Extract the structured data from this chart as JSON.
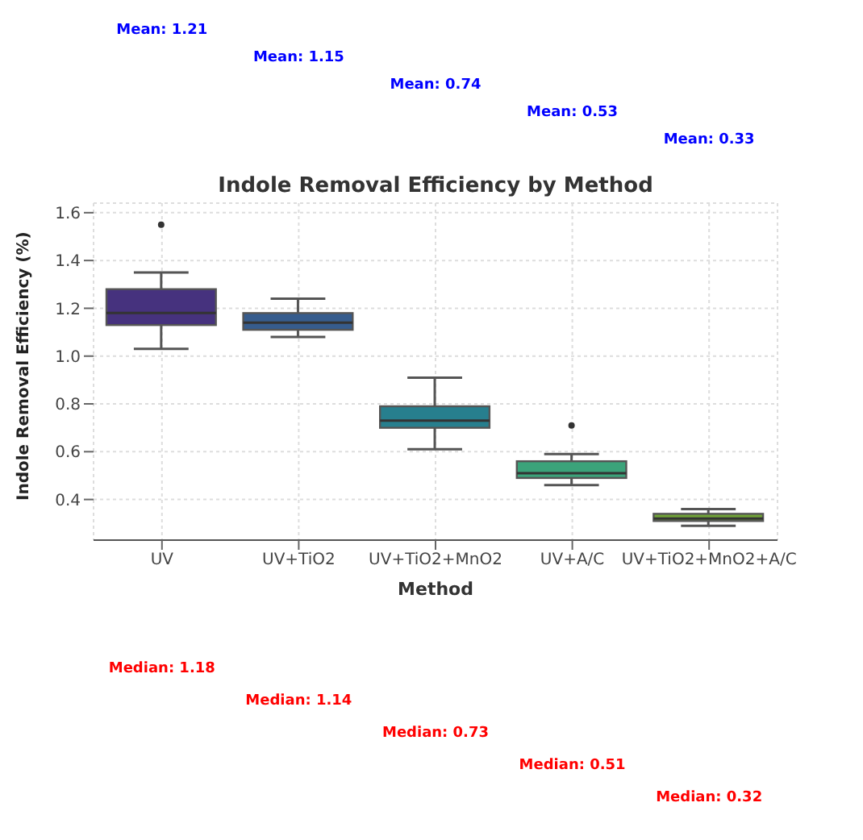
{
  "chart_data": {
    "type": "box",
    "title": "Indole Removal Efficiency by Method",
    "xlabel": "Method",
    "ylabel": "Indole Removal Efficiency (%)",
    "categories": [
      "UV",
      "UV+TiO2",
      "UV+TiO2+MnO2",
      "UV+A/C",
      "UV+TiO2+MnO2+A/C"
    ],
    "colors": [
      "#46327e",
      "#365c8d",
      "#277f8e",
      "#3ba37a",
      "#70a237"
    ],
    "boxes": [
      {
        "low": 1.03,
        "q1": 1.13,
        "median": 1.18,
        "q3": 1.28,
        "high": 1.35,
        "outliers": [
          1.55
        ]
      },
      {
        "low": 1.08,
        "q1": 1.11,
        "median": 1.14,
        "q3": 1.18,
        "high": 1.24
      },
      {
        "low": 0.61,
        "q1": 0.7,
        "median": 0.73,
        "q3": 0.79,
        "high": 0.91
      },
      {
        "low": 0.46,
        "q1": 0.49,
        "median": 0.51,
        "q3": 0.56,
        "high": 0.59,
        "outliers": [
          0.71
        ]
      },
      {
        "low": 0.29,
        "q1": 0.31,
        "median": 0.32,
        "q3": 0.34,
        "high": 0.36
      }
    ],
    "ylim": [
      0.23,
      1.64
    ],
    "yticks": [
      {
        "value": 0.4,
        "label": "0.4"
      },
      {
        "value": 0.6,
        "label": "0.6"
      },
      {
        "value": 0.8,
        "label": "0.8"
      },
      {
        "value": 1,
        "label": "1.0"
      },
      {
        "value": 1.2,
        "label": "1.2"
      },
      {
        "value": 1.4,
        "label": "1.4"
      },
      {
        "value": 1.6,
        "label": "1.6"
      }
    ],
    "grid": true,
    "annotations": [
      "Mean: 1.21",
      "Mean: 1.15",
      "Mean: 0.74",
      "Mean: 0.53",
      "Mean: 0.33",
      "Median: 1.18",
      "Median: 1.14",
      "Median: 0.73",
      "Median: 0.51",
      "Median: 0.32"
    ]
  }
}
